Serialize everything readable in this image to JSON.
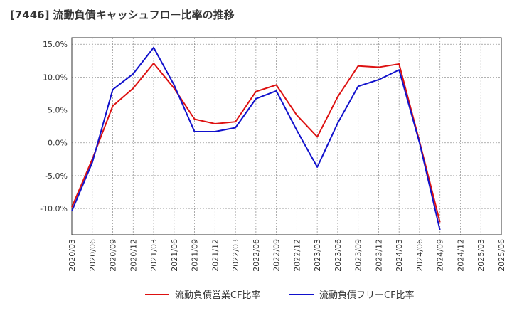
{
  "title": "[7446]  流動負債キャッシュフロー比率の推移",
  "chart_data": {
    "type": "line",
    "x": [
      "2020/03",
      "2020/06",
      "2020/09",
      "2020/12",
      "2021/03",
      "2021/06",
      "2021/09",
      "2021/12",
      "2022/03",
      "2022/06",
      "2022/09",
      "2022/12",
      "2023/03",
      "2023/06",
      "2023/09",
      "2023/12",
      "2024/03",
      "2024/06",
      "2024/09",
      "2024/12",
      "2025/03",
      "2025/06"
    ],
    "yticks": [
      -10,
      -5,
      0,
      5,
      10,
      15
    ],
    "ytick_labels": [
      "-10.0%",
      "-5.0%",
      "0.0%",
      "5.0%",
      "10.0%",
      "15.0%"
    ],
    "ylim": [
      -14,
      16
    ],
    "grid": true,
    "legend_position": "bottom",
    "series": [
      {
        "name": "流動負債営業CF比率",
        "color": "#dd1111",
        "values": [
          -9.8,
          -2.5,
          5.6,
          8.3,
          12.1,
          8.3,
          3.6,
          2.9,
          3.2,
          7.8,
          8.8,
          4.2,
          0.9,
          7.0,
          11.7,
          11.5,
          12.0,
          0.2,
          -12.1,
          null,
          null,
          null
        ]
      },
      {
        "name": "流動負債フリーCF比率",
        "color": "#1111cc",
        "values": [
          -10.4,
          -3.0,
          8.1,
          10.5,
          14.5,
          8.8,
          1.7,
          1.7,
          2.3,
          6.7,
          7.9,
          1.9,
          -3.7,
          3.0,
          8.6,
          9.6,
          11.1,
          0.0,
          -13.3,
          null,
          null,
          null
        ]
      }
    ]
  }
}
